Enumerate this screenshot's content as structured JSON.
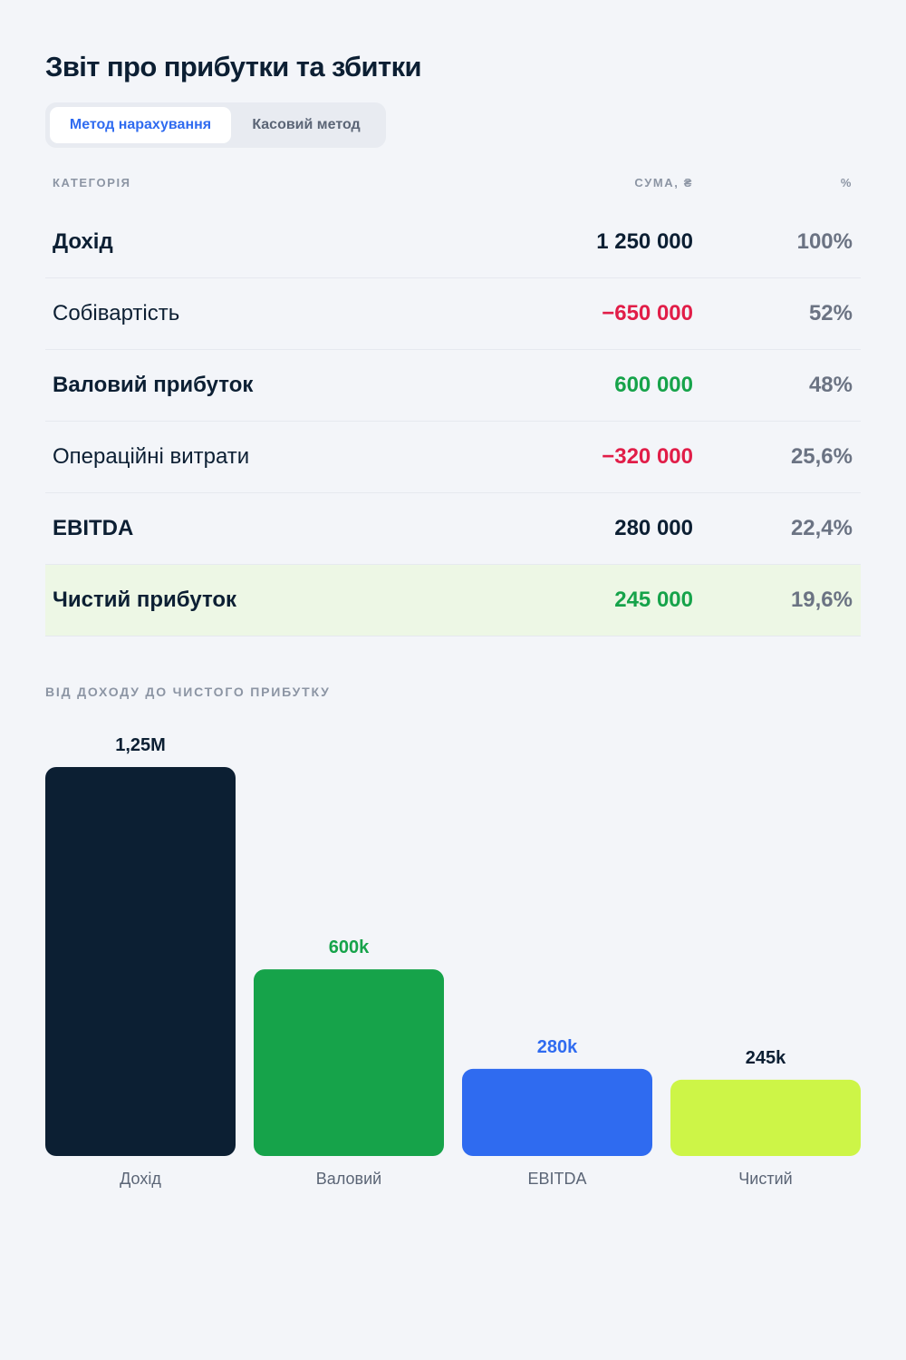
{
  "title": "Звіт про прибутки та збитки",
  "tabs": [
    {
      "label": "Метод нарахування",
      "active": true
    },
    {
      "label": "Касовий метод",
      "active": false
    }
  ],
  "table": {
    "headers": {
      "category": "КАТЕГОРІЯ",
      "amount": "СУМА, ₴",
      "percent": "%"
    },
    "rows": [
      {
        "category": "Дохід",
        "amount": "1 250 000",
        "percent": "100%",
        "tone": "dark",
        "bold": true,
        "highlight": false
      },
      {
        "category": "Собівартість",
        "amount": "−650 000",
        "percent": "52%",
        "tone": "red",
        "bold": false,
        "highlight": false
      },
      {
        "category": "Валовий прибуток",
        "amount": "600 000",
        "percent": "48%",
        "tone": "green",
        "bold": true,
        "highlight": false
      },
      {
        "category": "Операційні витрати",
        "amount": "−320 000",
        "percent": "25,6%",
        "tone": "red",
        "bold": false,
        "highlight": false
      },
      {
        "category": "EBITDA",
        "amount": "280 000",
        "percent": "22,4%",
        "tone": "dark",
        "bold": true,
        "highlight": false
      },
      {
        "category": "Чистий прибуток",
        "amount": "245 000",
        "percent": "19,6%",
        "tone": "green",
        "bold": true,
        "highlight": true
      }
    ]
  },
  "section_label": "ВІД ДОХОДУ ДО ЧИСТОГО ПРИБУТКУ",
  "colors": {
    "dark": "#0c1f33",
    "red": "#e11d48",
    "green": "#16a34a",
    "blue": "#2f6bf0",
    "lime": "#cdf547",
    "muted": "#6b7383"
  },
  "chart_data": {
    "type": "bar",
    "categories": [
      "Дохід",
      "Валовий",
      "EBITDA",
      "Чистий"
    ],
    "values": [
      1250000,
      600000,
      280000,
      245000
    ],
    "value_labels": [
      "1,25M",
      "600k",
      "280k",
      "245k"
    ],
    "bar_colors": [
      "#0c1f33",
      "#16a34a",
      "#2f6bf0",
      "#cdf547"
    ],
    "label_colors": [
      "#0c1f33",
      "#16a34a",
      "#2f6bf0",
      "#0c1f33"
    ],
    "title": "ВІД ДОХОДУ ДО ЧИСТОГО ПРИБУТКУ",
    "xlabel": "",
    "ylabel": "",
    "ylim": [
      0,
      1250000
    ],
    "grid": false,
    "legend": "none"
  }
}
